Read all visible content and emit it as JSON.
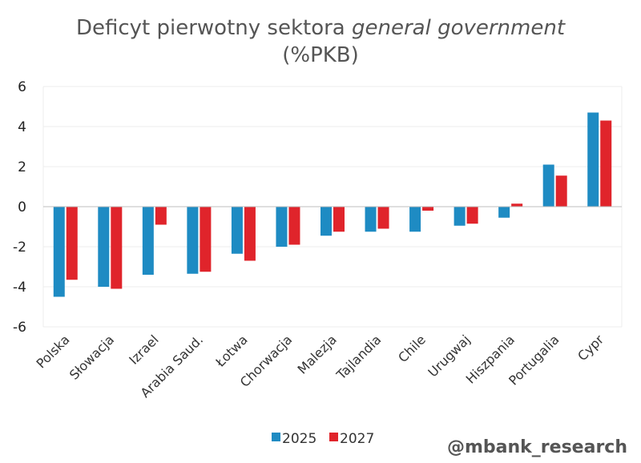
{
  "chart_data": {
    "type": "bar",
    "title_main": "Deficyt pierwotny sektora ",
    "title_italic": "general government",
    "subtitle": "(%PKB)",
    "categories": [
      "Polska",
      "Słowacja",
      "Izrael",
      "Arabia Saud.",
      "Łotwa",
      "Chorwacja",
      "Malezja",
      "Tajlandia",
      "Chile",
      "Urugwaj",
      "Hiszpania",
      "Portugalia",
      "Cypr"
    ],
    "series": [
      {
        "name": "2025",
        "color": "#1e8bc3",
        "values": [
          -4.5,
          -4.0,
          -3.4,
          -3.35,
          -2.35,
          -2.0,
          -1.45,
          -1.25,
          -1.25,
          -0.95,
          -0.55,
          2.1,
          4.7
        ]
      },
      {
        "name": "2027",
        "color": "#e0242b",
        "values": [
          -3.65,
          -4.1,
          -0.9,
          -3.25,
          -2.7,
          -1.9,
          -1.25,
          -1.1,
          -0.2,
          -0.85,
          0.15,
          1.55,
          4.3
        ]
      }
    ],
    "yticks": [
      "6",
      "4",
      "2",
      "0",
      "-2",
      "-4",
      "-6"
    ],
    "ylim": [
      -6,
      6
    ],
    "xlabel": "",
    "ylabel": "",
    "legend_position": "bottom",
    "grid": true
  },
  "credit": "@mbank_research"
}
